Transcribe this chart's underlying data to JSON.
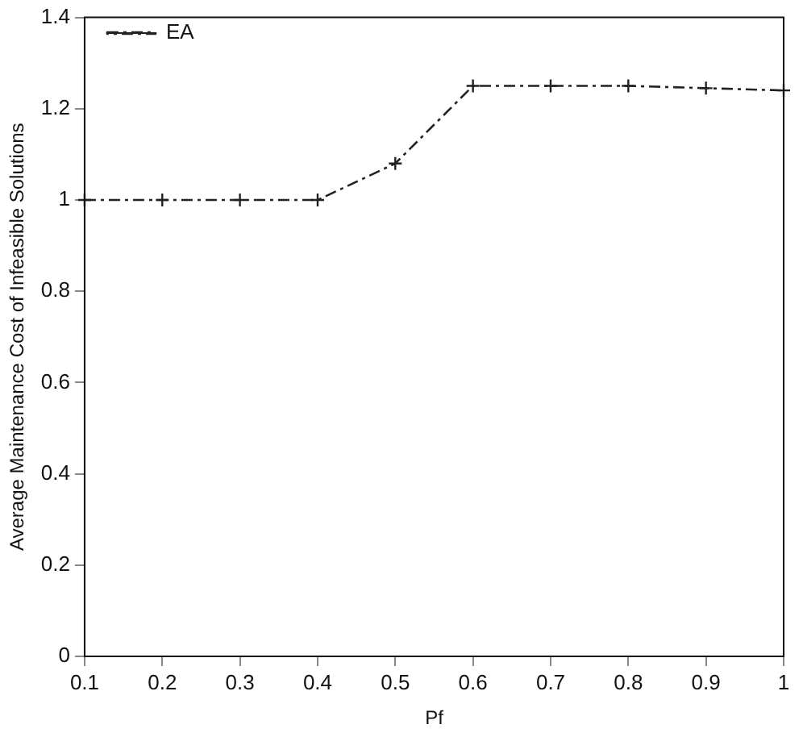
{
  "chart_data": {
    "type": "line",
    "xlabel": "Pf",
    "ylabel": "Average Maintenance Cost of Infeasible Solutions",
    "x": [
      0.1,
      0.2,
      0.3,
      0.4,
      0.5,
      0.6,
      0.7,
      0.8,
      0.9,
      1.0
    ],
    "series": [
      {
        "name": "EA",
        "color": "#222222",
        "values": [
          1,
          1,
          1,
          1,
          1.08,
          1.25,
          1.25,
          1.25,
          1.245,
          1.24
        ]
      }
    ],
    "xlim": [
      0.1,
      1
    ],
    "xticks": [
      0.1,
      0.2,
      0.3,
      0.4,
      0.5,
      0.6,
      0.7,
      0.8,
      0.9,
      1
    ],
    "ylim": [
      0,
      1.4
    ],
    "yticks": [
      0,
      0.2,
      0.4,
      0.6,
      0.8,
      1,
      1.2,
      1.4
    ],
    "grid": false,
    "legend": "top left",
    "marker": "cross",
    "line_style": "dashed"
  }
}
